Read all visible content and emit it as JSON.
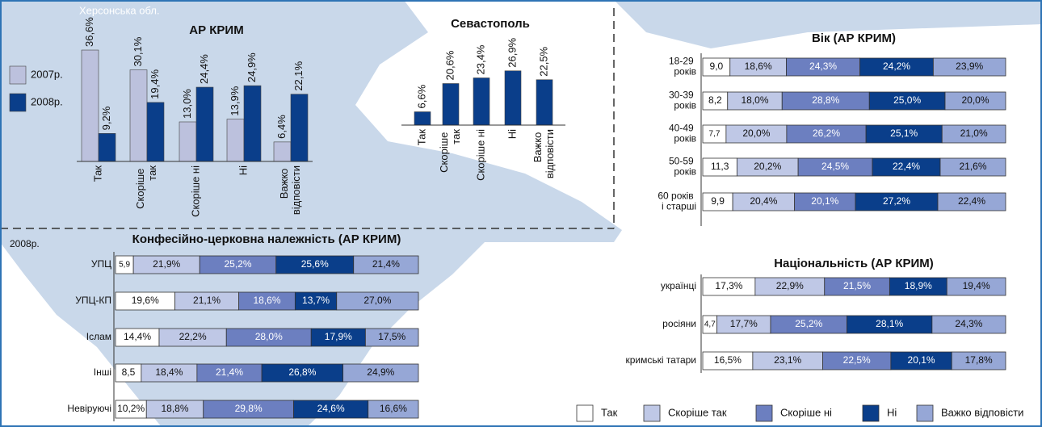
{
  "map_label": "Херсонська обл.",
  "chart_data": [
    {
      "type": "bar",
      "title": "АР КРИМ",
      "categories": [
        "Так",
        "Скоріше так",
        "Скоріше ні",
        "Ні",
        "Важко відповісти"
      ],
      "series": [
        {
          "name": "2007р.",
          "color": "#bcc1dd",
          "values": [
            36.6,
            30.1,
            13.0,
            13.9,
            6.4
          ],
          "value_labels": [
            "36,6%",
            "30,1%",
            "13,0%",
            "13,9%",
            "6,4%"
          ]
        },
        {
          "name": "2008р.",
          "color": "#0a3e8a",
          "values": [
            9.2,
            19.4,
            24.4,
            24.9,
            22.1
          ],
          "value_labels": [
            "9,2%",
            "19,4%",
            "24,4%",
            "24,9%",
            "22,1%"
          ]
        }
      ]
    },
    {
      "type": "bar",
      "title": "Севастополь",
      "categories": [
        "Так",
        "Скоріше так",
        "Скоріше ні",
        "Ні",
        "Важко відповісти"
      ],
      "values": [
        6.6,
        20.6,
        23.4,
        26.9,
        22.5
      ],
      "value_labels": [
        "6,6%",
        "20,6%",
        "23,4%",
        "26,9%",
        "22,5%"
      ],
      "color": "#0a3e8a"
    },
    {
      "type": "stacked_barh",
      "title": "Вік (АР КРИМ)",
      "categories": [
        "18-29 років",
        "30-39 років",
        "40-49 років",
        "50-59 років",
        "60 років і старші"
      ],
      "series": [
        {
          "name": "Так",
          "color": "#ffffff",
          "values": [
            9.0,
            8.2,
            7.7,
            11.3,
            9.9
          ],
          "value_labels": [
            "9,0",
            "8,2",
            "7,7",
            "11,3",
            "9,9"
          ]
        },
        {
          "name": "Скоріше так",
          "color": "#bfc8e6",
          "values": [
            18.6,
            18.0,
            20.0,
            20.2,
            20.4
          ],
          "value_labels": [
            "18,6%",
            "18,0%",
            "20,0%",
            "20,2%",
            "20,4%"
          ]
        },
        {
          "name": "Скоріше ні",
          "color": "#6c7fc0",
          "values": [
            24.3,
            28.8,
            26.2,
            24.5,
            20.1
          ],
          "value_labels": [
            "24,3%",
            "28,8%",
            "26,2%",
            "24,5%",
            "20,1%"
          ]
        },
        {
          "name": "Ні",
          "color": "#0a3e8a",
          "values": [
            24.2,
            25.0,
            25.1,
            22.4,
            27.2
          ],
          "value_labels": [
            "24,2%",
            "25,0%",
            "25,1%",
            "22,4%",
            "27,2%"
          ]
        },
        {
          "name": "Важко відповісти",
          "color": "#96a7d6",
          "values": [
            23.9,
            20.0,
            21.0,
            21.6,
            22.4
          ],
          "value_labels": [
            "23,9%",
            "20,0%",
            "21,0%",
            "21,6%",
            "22,4%"
          ]
        }
      ]
    },
    {
      "type": "stacked_barh",
      "title": "Конфесійно-церковна належність (АР КРИМ)",
      "annotation": "2008р.",
      "categories": [
        "УПЦ",
        "УПЦ-КП",
        "Іслам",
        "Інші",
        "Невіруючі"
      ],
      "series": [
        {
          "color": "#ffffff",
          "values": [
            5.9,
            19.6,
            14.4,
            8.5,
            10.2
          ],
          "value_labels": [
            "5,9",
            "19,6%",
            "14,4%",
            "8,5",
            "10,2%"
          ]
        },
        {
          "color": "#bfc8e6",
          "values": [
            21.9,
            21.1,
            22.2,
            18.4,
            18.8
          ],
          "value_labels": [
            "21,9%",
            "21,1%",
            "22,2%",
            "18,4%",
            "18,8%"
          ]
        },
        {
          "color": "#6c7fc0",
          "values": [
            25.2,
            18.6,
            28.0,
            21.4,
            29.8
          ],
          "value_labels": [
            "25,2%",
            "18,6%",
            "28,0%",
            "21,4%",
            "29,8%"
          ]
        },
        {
          "color": "#0a3e8a",
          "values": [
            25.6,
            13.7,
            17.9,
            26.8,
            24.6
          ],
          "value_labels": [
            "25,6%",
            "13,7%",
            "17,9%",
            "26,8%",
            "24,6%"
          ]
        },
        {
          "color": "#96a7d6",
          "values": [
            21.4,
            27.0,
            17.5,
            24.9,
            16.6
          ],
          "value_labels": [
            "21,4%",
            "27,0%",
            "17,5%",
            "24,9%",
            "16,6%"
          ]
        }
      ]
    },
    {
      "type": "stacked_barh",
      "title": "Національність (АР КРИМ)",
      "categories": [
        "українці",
        "росіяни",
        "кримські татари"
      ],
      "series": [
        {
          "color": "#ffffff",
          "values": [
            17.3,
            4.7,
            16.5
          ],
          "value_labels": [
            "17,3%",
            "4,7",
            "16,5%"
          ]
        },
        {
          "color": "#bfc8e6",
          "values": [
            22.9,
            17.7,
            23.1
          ],
          "value_labels": [
            "22,9%",
            "17,7%",
            "23,1%"
          ]
        },
        {
          "color": "#6c7fc0",
          "values": [
            21.5,
            25.2,
            22.5
          ],
          "value_labels": [
            "21,5%",
            "25,2%",
            "22,5%"
          ]
        },
        {
          "color": "#0a3e8a",
          "values": [
            18.9,
            28.1,
            20.1
          ],
          "value_labels": [
            "18,9%",
            "28,1%",
            "20,1%"
          ]
        },
        {
          "color": "#96a7d6",
          "values": [
            19.4,
            24.3,
            17.8
          ],
          "value_labels": [
            "19,4%",
            "24,3%",
            "17,8%"
          ]
        }
      ]
    }
  ]
}
